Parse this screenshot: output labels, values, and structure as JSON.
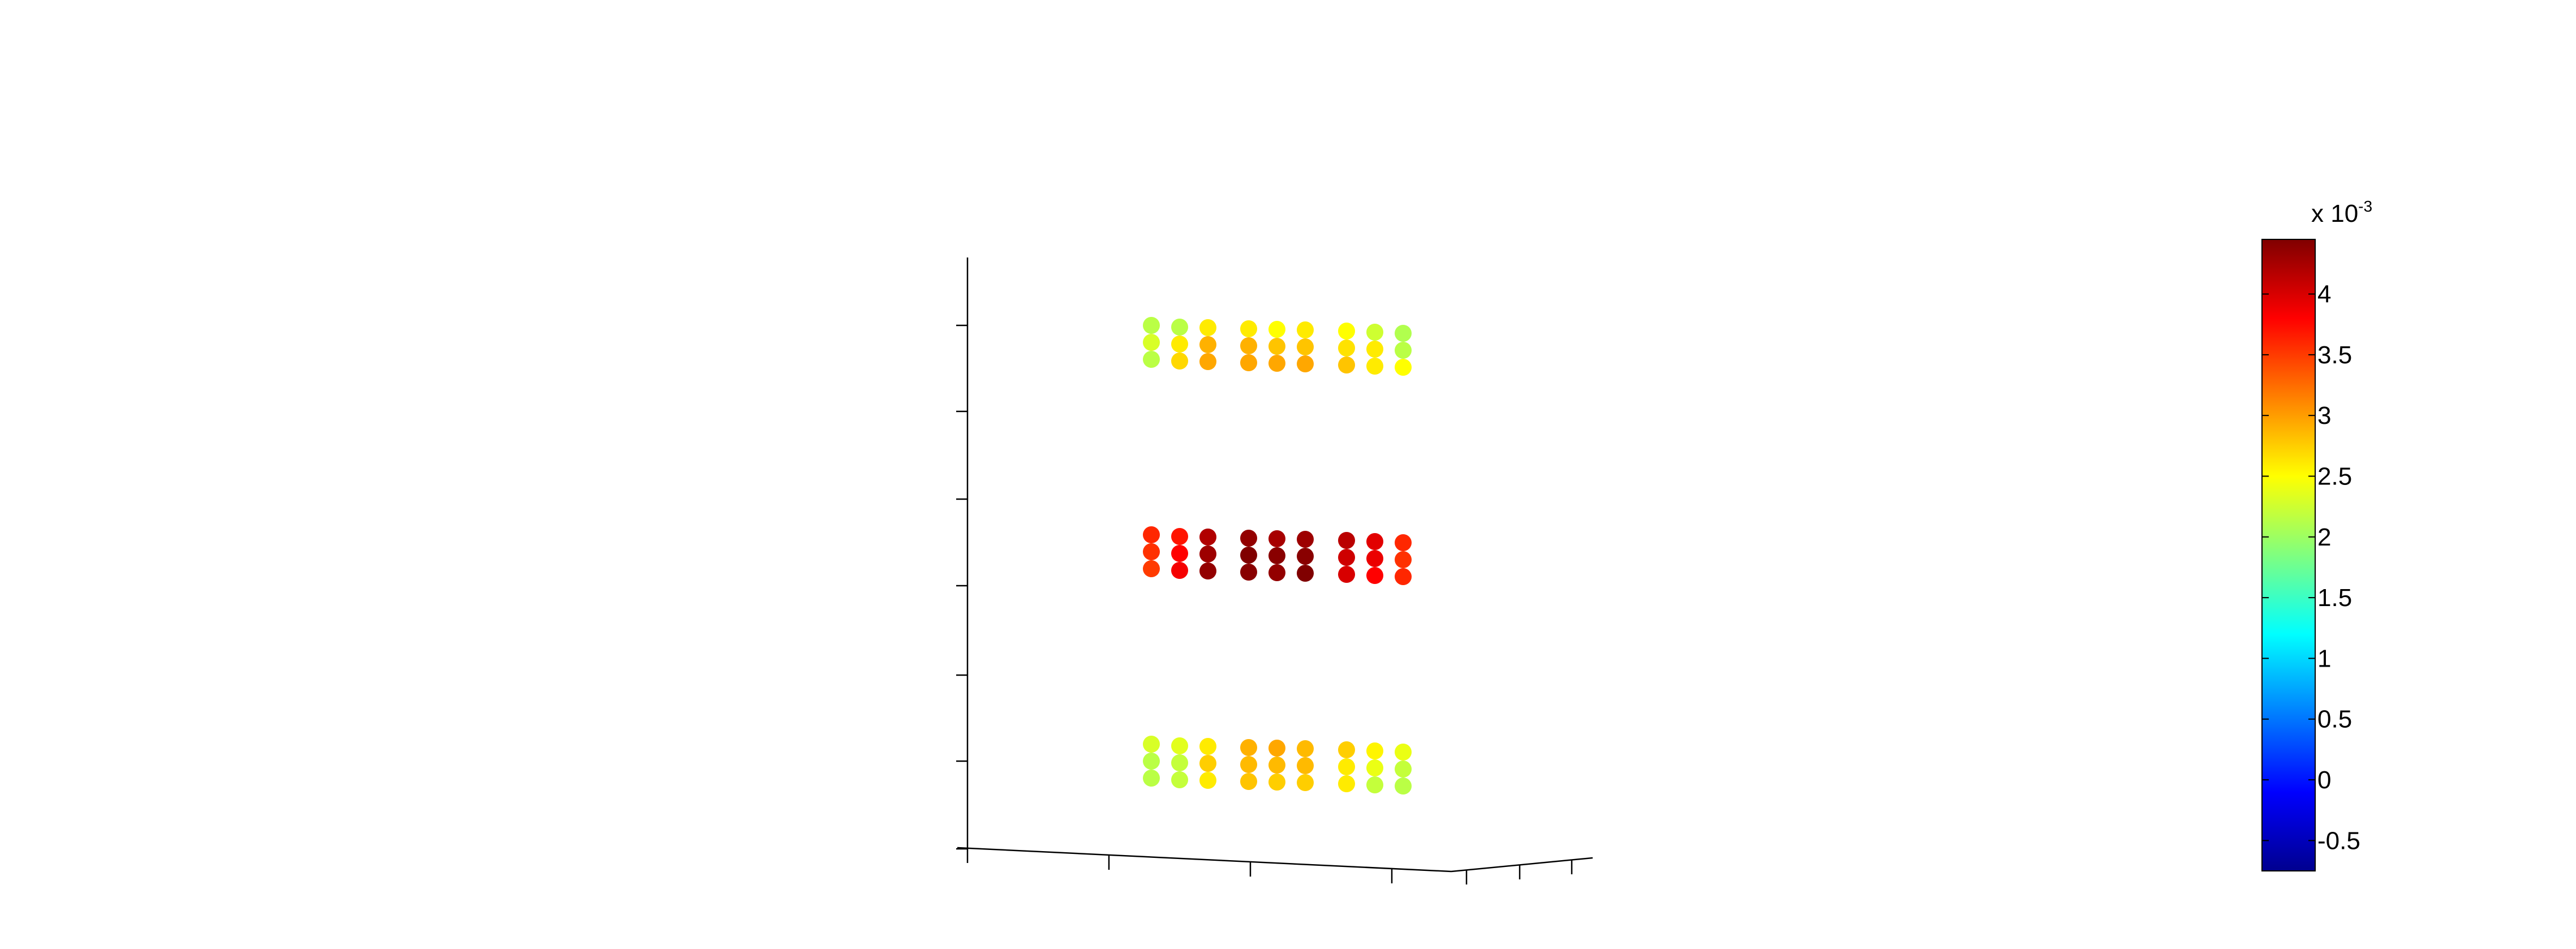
{
  "chart_data": {
    "type": "scatter",
    "projection": "3-D perspective view",
    "grid": false,
    "colormap": "jet",
    "colorbar": {
      "location": "right",
      "range": [
        -0.00075,
        0.00445
      ],
      "scale_label_base": "x 10",
      "scale_label_exponent": "-3",
      "ticks": [
        -0.5,
        0,
        0.5,
        1,
        1.5,
        2,
        2.5,
        3,
        3.5,
        4
      ],
      "tick_labels": [
        "-0.5",
        "0",
        "0.5",
        "1",
        "1.5",
        "2",
        "2.5",
        "3",
        "3.5",
        "4"
      ]
    },
    "axes": {
      "z_tick_count": 7,
      "x_tick_count": 4,
      "y_tick_count": 3,
      "tick_labels_shown": false
    },
    "groups": [
      {
        "level": "top",
        "columns": [
          [
            2.15,
            2.3,
            2.15
          ],
          [
            2.15,
            2.6,
            2.7
          ],
          [
            2.6,
            2.9,
            2.95
          ],
          [
            2.6,
            2.9,
            2.95
          ],
          [
            2.5,
            2.8,
            2.95
          ],
          [
            2.6,
            2.8,
            2.95
          ],
          [
            2.5,
            2.65,
            2.8
          ],
          [
            2.25,
            2.6,
            2.6
          ],
          [
            2.1,
            2.15,
            2.5
          ]
        ]
      },
      {
        "level": "middle",
        "columns": [
          [
            3.6,
            3.55,
            3.5
          ],
          [
            3.7,
            3.8,
            3.85
          ],
          [
            4.2,
            4.3,
            4.35
          ],
          [
            4.35,
            4.45,
            4.4
          ],
          [
            4.25,
            4.4,
            4.35
          ],
          [
            4.3,
            4.4,
            4.45
          ],
          [
            4.15,
            4.05,
            4.0
          ],
          [
            3.95,
            3.9,
            3.8
          ],
          [
            3.6,
            3.55,
            3.6
          ]
        ]
      },
      {
        "level": "bottom",
        "columns": [
          [
            2.3,
            2.15,
            2.15
          ],
          [
            2.35,
            2.2,
            2.2
          ],
          [
            2.6,
            2.75,
            2.6
          ],
          [
            2.9,
            2.85,
            2.8
          ],
          [
            2.95,
            2.85,
            2.75
          ],
          [
            2.85,
            2.85,
            2.75
          ],
          [
            2.75,
            2.6,
            2.6
          ],
          [
            2.55,
            2.4,
            2.2
          ],
          [
            2.4,
            2.2,
            2.15
          ]
        ]
      }
    ],
    "values_unit_note": "values are x 10^-3"
  }
}
